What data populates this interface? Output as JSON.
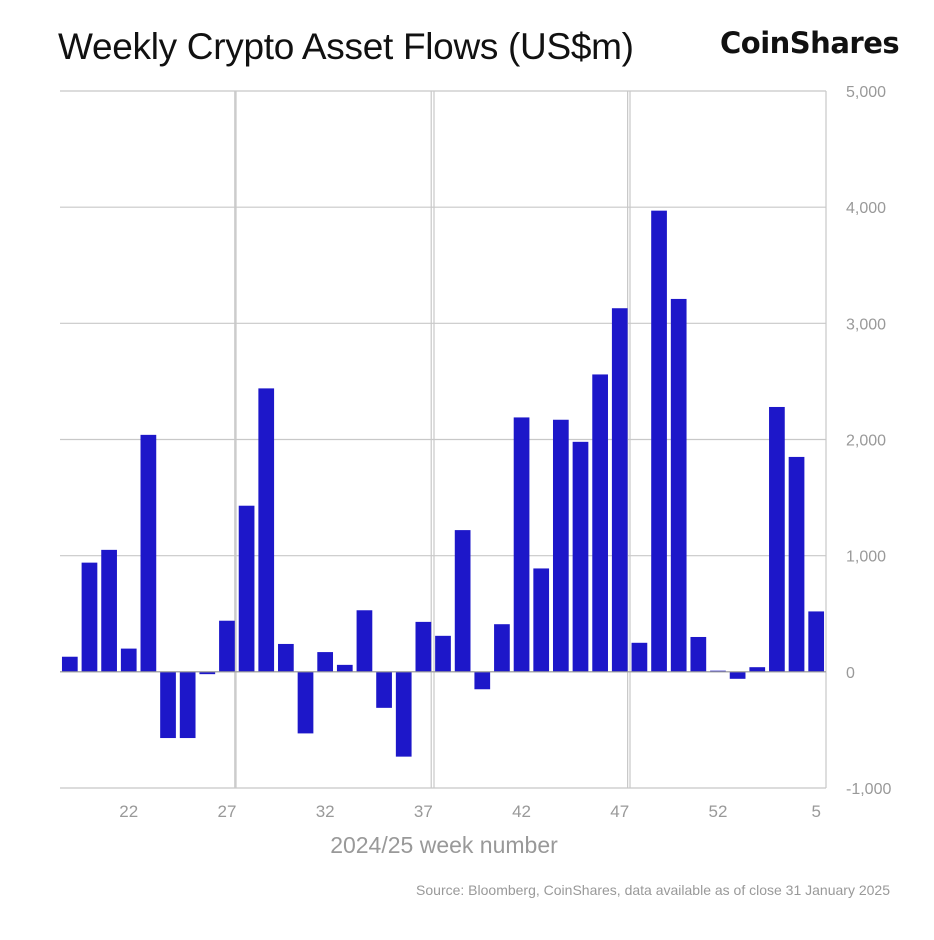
{
  "title": "Weekly Crypto Asset Flows (US$m)",
  "logo": "CoinShares",
  "source": "Source: Bloomberg, CoinShares, data available as of close 31 January 2025",
  "colors": {
    "bar": "#1d17c9",
    "grid": "#c8c8c8",
    "axis_text": "#999999"
  },
  "chart_data": {
    "type": "bar",
    "title": "Weekly Crypto Asset Flows (US$m)",
    "xlabel": "2024/25 week number",
    "ylabel": "",
    "ylim": [
      -1000,
      5000
    ],
    "yticks": [
      "5,000",
      "4,000",
      "3,000",
      "2,000",
      "1,000",
      "0",
      "-1,000"
    ],
    "ytick_values": [
      5000,
      4000,
      3000,
      2000,
      1000,
      0,
      -1000
    ],
    "xtick_labels": [
      "22",
      "27",
      "32",
      "37",
      "42",
      "47",
      "52",
      "5"
    ],
    "grid": true,
    "categories": [
      "19",
      "20",
      "21",
      "22",
      "23",
      "24",
      "25",
      "26",
      "27",
      "28",
      "29",
      "30",
      "31",
      "32",
      "33",
      "34",
      "35",
      "36",
      "37",
      "38",
      "39",
      "40",
      "41",
      "42",
      "43",
      "44",
      "45",
      "46",
      "47",
      "48",
      "49",
      "50",
      "51",
      "52",
      "1",
      "2",
      "3",
      "4",
      "5"
    ],
    "values": [
      130,
      940,
      1050,
      200,
      2040,
      -570,
      -570,
      -20,
      440,
      1430,
      2440,
      240,
      -530,
      170,
      60,
      530,
      -310,
      -730,
      430,
      310,
      1220,
      -150,
      410,
      2190,
      890,
      2170,
      1980,
      2560,
      3130,
      250,
      3970,
      3210,
      300,
      10,
      -60,
      40,
      2280,
      1850,
      520
    ]
  }
}
